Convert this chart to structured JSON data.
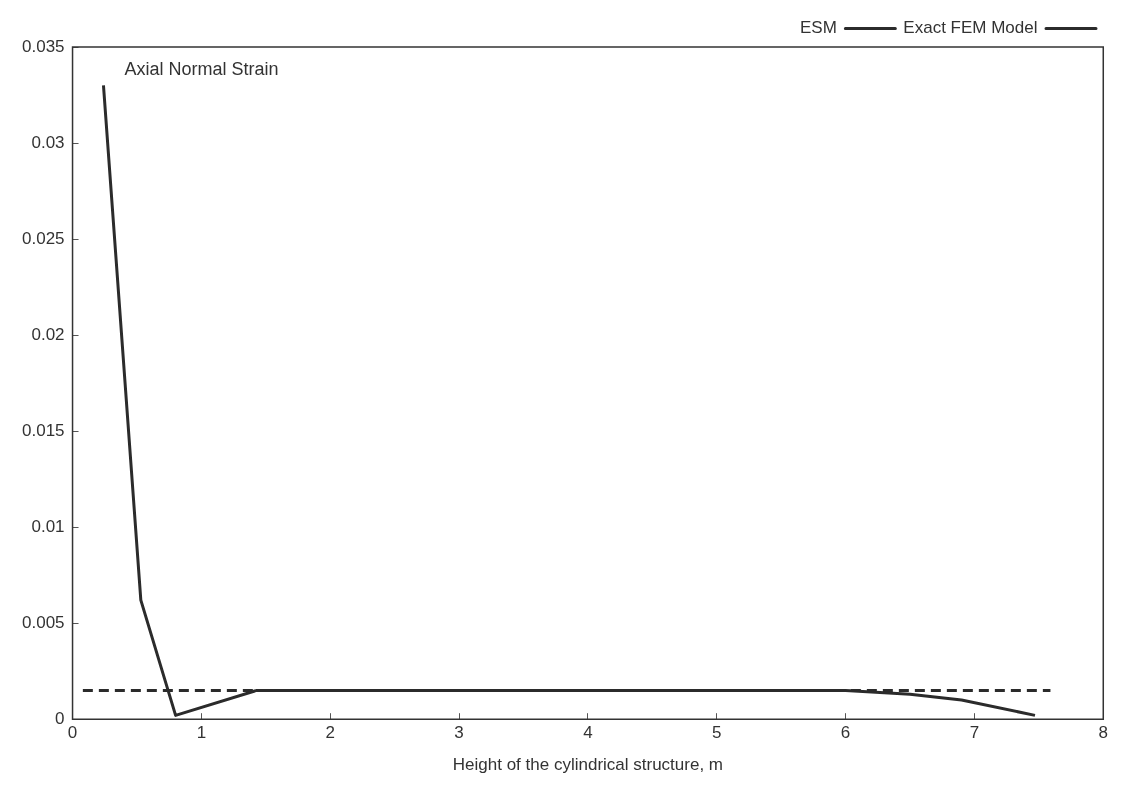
{
  "chart_data": {
    "type": "line",
    "xlabel": "Height of the cylindrical structure, m",
    "annotations": [
      "Axial Normal Strain"
    ],
    "xlim": [
      0,
      8
    ],
    "xticks": [
      0,
      1,
      2,
      3,
      4,
      5,
      6,
      7,
      8
    ],
    "ylim": [
      0,
      0.035
    ],
    "yticks": [
      0,
      0.005,
      0.01,
      0.015,
      0.02,
      0.025,
      0.03,
      0.035
    ],
    "grid": false,
    "legend": "top right",
    "marker": "none",
    "series": [
      {
        "name": "Exact FEM Model",
        "color": "#2b2b2b",
        "line_style": "solid",
        "x": [
          0.24,
          0.53,
          0.8,
          1.43,
          2,
          3,
          4,
          5,
          6,
          6.5,
          6.9,
          7.47
        ],
        "values": [
          0.033,
          0.0062,
          0.0002,
          0.0015,
          0.0015,
          0.0015,
          0.0015,
          0.0015,
          0.0015,
          0.0013,
          0.001,
          0.0002
        ]
      },
      {
        "name": "ESM",
        "color": "#2b2b2b",
        "line_style": "dashed",
        "x": [
          0.08,
          7.59
        ],
        "values": [
          0.0015,
          0.0015
        ]
      }
    ]
  }
}
